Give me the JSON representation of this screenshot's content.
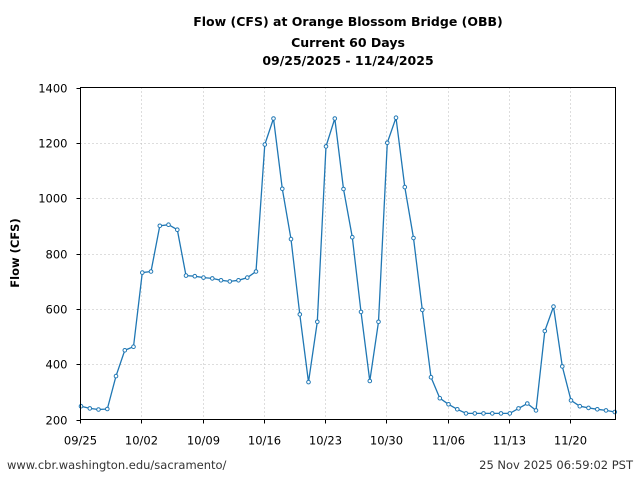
{
  "chart_data": {
    "type": "line",
    "title": "Flow (CFS) at Orange Blossom Bridge (OBB)",
    "subtitle": "Current 60 Days",
    "date_range": "09/25/2025 - 11/24/2025",
    "xlabel": "",
    "ylabel": "Flow (CFS)",
    "ylim": [
      200,
      1400
    ],
    "yticks": [
      200,
      400,
      600,
      800,
      1000,
      1200,
      1400
    ],
    "xticks": [
      "09/25",
      "10/02",
      "10/09",
      "10/16",
      "10/23",
      "10/30",
      "11/06",
      "11/13",
      "11/20"
    ],
    "grid": true,
    "legend": null,
    "series_color": "#1f77b4",
    "x_start": "09/25/2025",
    "x_step_days": 1,
    "series": [
      {
        "name": "Flow (CFS)",
        "values": [
          248,
          240,
          236,
          238,
          357,
          450,
          463,
          731,
          735,
          900,
          904,
          886,
          720,
          718,
          713,
          710,
          703,
          699,
          703,
          713,
          735,
          1194,
          1288,
          1034,
          852,
          580,
          335,
          553,
          1187,
          1288,
          1033,
          859,
          589,
          339,
          553,
          1200,
          1291,
          1040,
          856,
          596,
          353,
          277,
          255,
          237,
          222,
          222,
          222,
          222,
          222,
          222,
          240,
          258,
          233,
          520,
          608,
          392,
          269,
          248,
          242,
          237,
          233,
          227
        ]
      }
    ]
  },
  "header": {
    "title": "Flow (CFS) at Orange Blossom Bridge (OBB)",
    "subtitle": "Current 60 Days",
    "date_range": "09/25/2025 - 11/24/2025"
  },
  "footer": {
    "url": "www.cbr.washington.edu/sacramento/",
    "timestamp": "25 Nov 2025 06:59:02 PST"
  }
}
